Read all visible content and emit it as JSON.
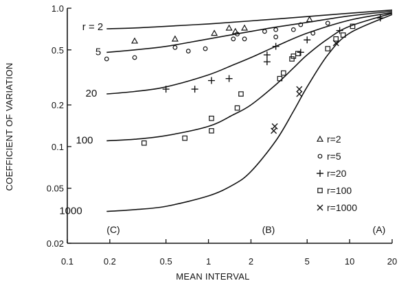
{
  "chart_data": {
    "type": "scatter",
    "xlabel": "MEAN INTERVAL",
    "ylabel": "COEFFICIENT OF VARIATION",
    "xscale": "log",
    "yscale": "log",
    "xlim": [
      0.1,
      20
    ],
    "ylim": [
      0.02,
      1.0
    ],
    "x_ticks": [
      0.1,
      0.2,
      0.5,
      1,
      2,
      5,
      10,
      20
    ],
    "x_tick_labels": [
      "0.1",
      "0.2",
      "0.5",
      "1",
      "2",
      "5",
      "10",
      "20"
    ],
    "y_ticks": [
      0.02,
      0.05,
      0.1,
      0.2,
      0.5,
      1.0
    ],
    "y_tick_labels": [
      "0.02",
      "0.05",
      "0.1",
      "0.2",
      "0.5",
      "1.0"
    ],
    "grid": false,
    "legend_position": "lower-right",
    "curves": [
      {
        "label": "r = 2",
        "x": [
          0.19,
          0.3,
          0.5,
          1,
          2,
          5,
          10,
          20
        ],
        "y": [
          0.71,
          0.72,
          0.74,
          0.77,
          0.81,
          0.87,
          0.92,
          0.97
        ]
      },
      {
        "label": "5",
        "x": [
          0.19,
          0.3,
          0.5,
          1,
          2,
          3,
          5,
          10,
          20
        ],
        "y": [
          0.48,
          0.5,
          0.53,
          0.6,
          0.68,
          0.73,
          0.79,
          0.88,
          0.95
        ]
      },
      {
        "label": "20",
        "x": [
          0.19,
          0.3,
          0.5,
          1,
          1.5,
          2,
          3,
          5,
          10,
          20
        ],
        "y": [
          0.24,
          0.25,
          0.27,
          0.33,
          0.39,
          0.44,
          0.53,
          0.66,
          0.82,
          0.93
        ]
      },
      {
        "label": "100",
        "x": [
          0.19,
          0.3,
          0.5,
          1,
          1.5,
          2,
          3,
          4,
          5,
          7,
          10,
          20
        ],
        "y": [
          0.11,
          0.113,
          0.12,
          0.14,
          0.17,
          0.2,
          0.28,
          0.37,
          0.46,
          0.6,
          0.74,
          0.92
        ]
      },
      {
        "label": "1000",
        "x": [
          0.19,
          0.3,
          0.5,
          1,
          1.5,
          2,
          3,
          4,
          5,
          7,
          10,
          20
        ],
        "y": [
          0.034,
          0.035,
          0.037,
          0.044,
          0.053,
          0.066,
          0.11,
          0.18,
          0.27,
          0.46,
          0.66,
          0.9
        ]
      }
    ],
    "series": [
      {
        "name": "r=2",
        "marker": "triangle",
        "points": [
          [
            0.3,
            0.58
          ],
          [
            0.58,
            0.6
          ],
          [
            1.1,
            0.66
          ],
          [
            1.4,
            0.72
          ],
          [
            1.55,
            0.68
          ],
          [
            1.8,
            0.72
          ],
          [
            5.2,
            0.83
          ]
        ]
      },
      {
        "name": "r=5",
        "marker": "circle",
        "points": [
          [
            0.19,
            0.43
          ],
          [
            0.3,
            0.44
          ],
          [
            0.58,
            0.52
          ],
          [
            0.72,
            0.49
          ],
          [
            0.95,
            0.51
          ],
          [
            1.5,
            0.6
          ],
          [
            1.6,
            0.65
          ],
          [
            1.8,
            0.6
          ],
          [
            2.5,
            0.68
          ],
          [
            3,
            0.7
          ],
          [
            3,
            0.62
          ],
          [
            4,
            0.7
          ],
          [
            4.5,
            0.76
          ],
          [
            5.5,
            0.66
          ],
          [
            7,
            0.78
          ]
        ]
      },
      {
        "name": "r=20",
        "marker": "plus",
        "points": [
          [
            0.5,
            0.26
          ],
          [
            0.8,
            0.26
          ],
          [
            1.05,
            0.3
          ],
          [
            1.4,
            0.31
          ],
          [
            2.6,
            0.46
          ],
          [
            2.6,
            0.41
          ],
          [
            3,
            0.53
          ],
          [
            4.5,
            0.48
          ],
          [
            5,
            0.59
          ],
          [
            8.5,
            0.69
          ],
          [
            16.5,
            0.85
          ]
        ]
      },
      {
        "name": "r=100",
        "marker": "square",
        "points": [
          [
            0.35,
            0.106
          ],
          [
            0.68,
            0.115
          ],
          [
            1.05,
            0.16
          ],
          [
            1.05,
            0.13
          ],
          [
            1.6,
            0.19
          ],
          [
            1.7,
            0.24
          ],
          [
            3.2,
            0.31
          ],
          [
            3.4,
            0.34
          ],
          [
            3.9,
            0.43
          ],
          [
            4,
            0.45
          ],
          [
            4.3,
            0.47
          ],
          [
            7,
            0.51
          ],
          [
            8,
            0.6
          ],
          [
            9,
            0.64
          ],
          [
            10.5,
            0.74
          ]
        ]
      },
      {
        "name": "r=1000",
        "marker": "x",
        "points": [
          [
            2.9,
            0.13
          ],
          [
            2.95,
            0.14
          ],
          [
            4.4,
            0.24
          ],
          [
            4.4,
            0.26
          ],
          [
            8,
            0.56
          ]
        ]
      }
    ]
  },
  "legend": [
    {
      "marker": "triangle",
      "label": "r=2"
    },
    {
      "marker": "circle",
      "label": "r=5"
    },
    {
      "marker": "plus",
      "label": "r=20"
    },
    {
      "marker": "square",
      "label": "r=100"
    },
    {
      "marker": "x",
      "label": "r=1000"
    }
  ],
  "regions": [
    "(C)",
    "(B)",
    "(A)"
  ],
  "colors": {
    "ink": "#111111",
    "background": "#ffffff"
  }
}
